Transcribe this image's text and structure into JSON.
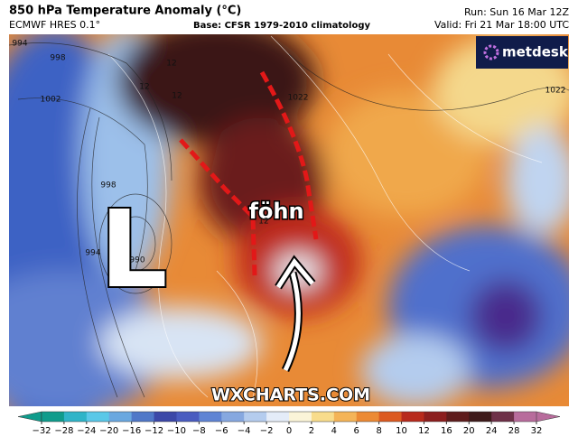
{
  "header": {
    "title": "850 hPa Temperature Anomaly (°C)",
    "model": "ECMWF HRES 0.1°",
    "base": "Base: CFSR 1979-2010 climatology",
    "run": "Run: Sun 16 Mar 12Z",
    "valid": "Valid: Fri 21 Mar 18:00 UTC"
  },
  "logo": "metdesk",
  "annotations": {
    "low": "L",
    "foehn": "föhn",
    "watermark": "WXCHARTS.COM"
  },
  "isobar_labels": [
    "994",
    "998",
    "1002",
    "998",
    "994",
    "990",
    "12",
    "12",
    "12",
    "1022",
    "1022",
    "12"
  ],
  "colorbar": {
    "labels": [
      "−32",
      "−28",
      "−24",
      "−20",
      "−16",
      "−12",
      "−10",
      "−8",
      "−6",
      "−4",
      "−2",
      "0",
      "2",
      "4",
      "6",
      "8",
      "10",
      "12",
      "16",
      "20",
      "24",
      "28",
      "32"
    ],
    "colors": [
      "#0f9c8c",
      "#2fb4c8",
      "#5ac8e8",
      "#6aa8e0",
      "#5078c8",
      "#3c48a8",
      "#4a5cc0",
      "#5f84d4",
      "#86a8e0",
      "#b4ccee",
      "#e4ecf8",
      "#fbf4d8",
      "#f8dc8c",
      "#f4b458",
      "#ec8a34",
      "#dc5a20",
      "#b82a1c",
      "#8c1e1e",
      "#5e1c1c",
      "#3e1a1a",
      "#6e3048",
      "#b86c9c"
    ]
  }
}
